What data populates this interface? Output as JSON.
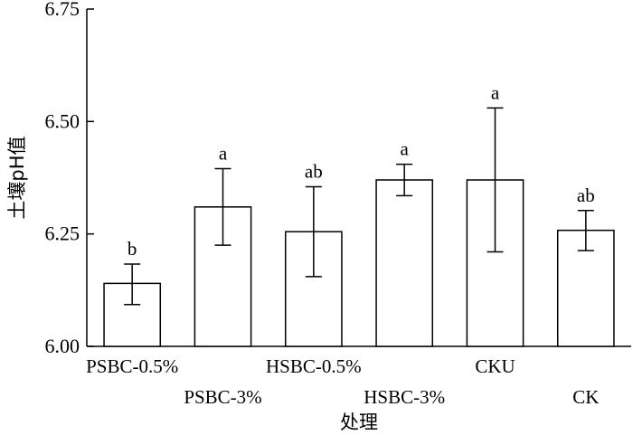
{
  "chart_data": {
    "type": "bar",
    "ylabel": "土壤pH值",
    "xlabel": "处理",
    "ylim": [
      6.0,
      6.75
    ],
    "yticks": [
      6.0,
      6.25,
      6.5,
      6.75
    ],
    "ytick_labels": [
      "6.00",
      "6.25",
      "6.50",
      "6.75"
    ],
    "categories": [
      "PSBC-0.5%",
      "PSBC-3%",
      "HSBC-0.5%",
      "HSBC-3%",
      "CKU",
      "CK"
    ],
    "values": [
      6.14,
      6.31,
      6.255,
      6.37,
      6.37,
      6.258
    ],
    "error_low": [
      6.093,
      6.225,
      6.155,
      6.335,
      6.21,
      6.213
    ],
    "error_high": [
      6.183,
      6.395,
      6.355,
      6.405,
      6.53,
      6.302
    ],
    "significance": [
      "b",
      "a",
      "ab",
      "a",
      "a",
      "ab"
    ],
    "grid": false,
    "bar_fill": "#ffffff",
    "bar_stroke": "#000000"
  }
}
